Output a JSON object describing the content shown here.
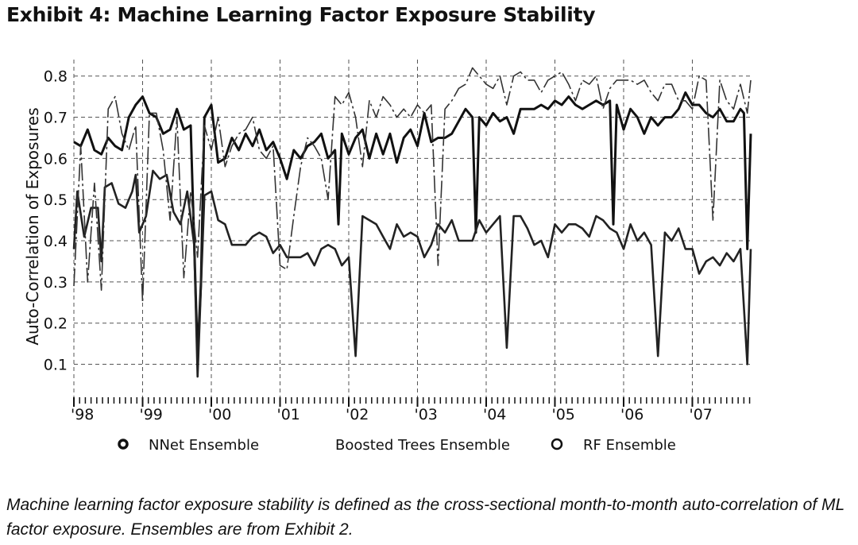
{
  "title": "Exhibit 4: Machine Learning Factor Exposure Stability",
  "caption": "Machine learning factor exposure stability is defined as the cross-sectional month-to-month auto-correlation of ML factor exposure. Ensembles are from Exhibit 2.",
  "chart_data": {
    "type": "line",
    "title": "",
    "xlabel": "",
    "ylabel": "Auto-Correlation of Exposures",
    "xlim": [
      1998,
      2007.85
    ],
    "ylim": [
      0.02,
      0.84
    ],
    "y_ticks": [
      0.1,
      0.2,
      0.3,
      0.4,
      0.5,
      0.6,
      0.7,
      0.8
    ],
    "x_ticks": [
      {
        "value": 1998,
        "label": "'98"
      },
      {
        "value": 1999,
        "label": "'99"
      },
      {
        "value": 2000,
        "label": "'00"
      },
      {
        "value": 2001,
        "label": "'01"
      },
      {
        "value": 2002,
        "label": "'02"
      },
      {
        "value": 2003,
        "label": "'03"
      },
      {
        "value": 2004,
        "label": "'04"
      },
      {
        "value": 2005,
        "label": "'05"
      },
      {
        "value": 2006,
        "label": "'06"
      },
      {
        "value": 2007,
        "label": "'07"
      }
    ],
    "grid": true,
    "legend_position": "bottom",
    "series": [
      {
        "name": "NNet Ensemble",
        "style": "thick-solid",
        "color": "#111111",
        "x": [
          1998.0,
          1998.1,
          1998.2,
          1998.3,
          1998.4,
          1998.5,
          1998.6,
          1998.7,
          1998.8,
          1998.9,
          1999.0,
          1999.1,
          1999.2,
          1999.3,
          1999.4,
          1999.5,
          1999.6,
          1999.7,
          1999.8,
          1999.85,
          1999.9,
          2000.0,
          2000.1,
          2000.2,
          2000.3,
          2000.4,
          2000.5,
          2000.6,
          2000.7,
          2000.8,
          2000.9,
          2001.0,
          2001.1,
          2001.2,
          2001.3,
          2001.4,
          2001.5,
          2001.6,
          2001.7,
          2001.8,
          2001.85,
          2001.9,
          2002.0,
          2002.1,
          2002.2,
          2002.3,
          2002.4,
          2002.5,
          2002.6,
          2002.7,
          2002.8,
          2002.9,
          2003.0,
          2003.1,
          2003.2,
          2003.3,
          2003.4,
          2003.5,
          2003.6,
          2003.7,
          2003.8,
          2003.85,
          2003.9,
          2004.0,
          2004.1,
          2004.2,
          2004.3,
          2004.4,
          2004.5,
          2004.6,
          2004.7,
          2004.8,
          2004.9,
          2005.0,
          2005.1,
          2005.2,
          2005.3,
          2005.4,
          2005.5,
          2005.6,
          2005.7,
          2005.8,
          2005.85,
          2005.9,
          2006.0,
          2006.1,
          2006.2,
          2006.3,
          2006.4,
          2006.5,
          2006.6,
          2006.7,
          2006.8,
          2006.9,
          2007.0,
          2007.1,
          2007.2,
          2007.3,
          2007.4,
          2007.5,
          2007.6,
          2007.7,
          2007.75,
          2007.8,
          2007.85
        ],
        "y": [
          0.64,
          0.63,
          0.67,
          0.62,
          0.61,
          0.65,
          0.63,
          0.62,
          0.7,
          0.73,
          0.75,
          0.71,
          0.7,
          0.66,
          0.67,
          0.72,
          0.67,
          0.68,
          0.12,
          0.3,
          0.7,
          0.73,
          0.59,
          0.6,
          0.65,
          0.62,
          0.66,
          0.63,
          0.67,
          0.62,
          0.64,
          0.6,
          0.55,
          0.62,
          0.6,
          0.63,
          0.64,
          0.66,
          0.6,
          0.62,
          0.44,
          0.66,
          0.61,
          0.65,
          0.67,
          0.6,
          0.66,
          0.61,
          0.66,
          0.59,
          0.65,
          0.67,
          0.63,
          0.71,
          0.64,
          0.65,
          0.65,
          0.66,
          0.69,
          0.72,
          0.7,
          0.42,
          0.7,
          0.68,
          0.71,
          0.69,
          0.7,
          0.66,
          0.72,
          0.72,
          0.72,
          0.73,
          0.72,
          0.74,
          0.73,
          0.75,
          0.73,
          0.72,
          0.73,
          0.74,
          0.73,
          0.74,
          0.44,
          0.73,
          0.67,
          0.72,
          0.7,
          0.66,
          0.7,
          0.68,
          0.7,
          0.7,
          0.72,
          0.76,
          0.73,
          0.73,
          0.71,
          0.7,
          0.72,
          0.69,
          0.69,
          0.72,
          0.71,
          0.38,
          0.66
        ]
      },
      {
        "name": "Boosted Trees Ensemble",
        "style": "medium-solid",
        "color": "#222222",
        "x": [
          1998.0,
          1998.05,
          1998.15,
          1998.25,
          1998.35,
          1998.4,
          1998.45,
          1998.55,
          1998.65,
          1998.75,
          1998.85,
          1998.9,
          1998.95,
          1999.05,
          1999.15,
          1999.25,
          1999.35,
          1999.45,
          1999.55,
          1999.65,
          1999.75,
          1999.8,
          1999.9,
          2000.0,
          2000.1,
          2000.2,
          2000.3,
          2000.4,
          2000.5,
          2000.6,
          2000.7,
          2000.8,
          2000.9,
          2001.0,
          2001.1,
          2001.2,
          2001.3,
          2001.4,
          2001.5,
          2001.6,
          2001.7,
          2001.8,
          2001.9,
          2002.0,
          2002.1,
          2002.2,
          2002.3,
          2002.4,
          2002.5,
          2002.6,
          2002.7,
          2002.8,
          2002.9,
          2003.0,
          2003.1,
          2003.2,
          2003.3,
          2003.4,
          2003.5,
          2003.6,
          2003.7,
          2003.8,
          2003.9,
          2004.0,
          2004.1,
          2004.2,
          2004.3,
          2004.4,
          2004.5,
          2004.6,
          2004.7,
          2004.8,
          2004.9,
          2005.0,
          2005.1,
          2005.2,
          2005.3,
          2005.4,
          2005.5,
          2005.6,
          2005.7,
          2005.8,
          2005.9,
          2006.0,
          2006.1,
          2006.2,
          2006.3,
          2006.4,
          2006.5,
          2006.6,
          2006.7,
          2006.8,
          2006.9,
          2007.0,
          2007.1,
          2007.2,
          2007.3,
          2007.4,
          2007.5,
          2007.6,
          2007.7,
          2007.8,
          2007.85
        ],
        "y": [
          0.38,
          0.52,
          0.41,
          0.48,
          0.48,
          0.35,
          0.53,
          0.54,
          0.49,
          0.48,
          0.52,
          0.56,
          0.42,
          0.46,
          0.57,
          0.55,
          0.56,
          0.47,
          0.44,
          0.52,
          0.39,
          0.07,
          0.51,
          0.52,
          0.45,
          0.44,
          0.39,
          0.39,
          0.39,
          0.41,
          0.42,
          0.41,
          0.37,
          0.39,
          0.36,
          0.36,
          0.36,
          0.37,
          0.34,
          0.38,
          0.39,
          0.38,
          0.34,
          0.36,
          0.12,
          0.46,
          0.45,
          0.44,
          0.41,
          0.38,
          0.44,
          0.41,
          0.42,
          0.41,
          0.36,
          0.39,
          0.44,
          0.42,
          0.45,
          0.4,
          0.4,
          0.4,
          0.45,
          0.42,
          0.44,
          0.46,
          0.14,
          0.46,
          0.46,
          0.43,
          0.39,
          0.4,
          0.36,
          0.44,
          0.42,
          0.44,
          0.44,
          0.43,
          0.41,
          0.46,
          0.45,
          0.43,
          0.42,
          0.38,
          0.44,
          0.4,
          0.42,
          0.39,
          0.12,
          0.42,
          0.4,
          0.43,
          0.38,
          0.38,
          0.32,
          0.35,
          0.36,
          0.34,
          0.37,
          0.35,
          0.38,
          0.1,
          0.38
        ]
      },
      {
        "name": "RF Ensemble",
        "style": "thin-dashed",
        "color": "#333333",
        "x": [
          1998.0,
          1998.1,
          1998.2,
          1998.3,
          1998.4,
          1998.5,
          1998.6,
          1998.7,
          1998.8,
          1998.9,
          1999.0,
          1999.1,
          1999.2,
          1999.3,
          1999.4,
          1999.5,
          1999.6,
          1999.7,
          1999.8,
          1999.9,
          2000.0,
          2000.1,
          2000.2,
          2000.3,
          2000.4,
          2000.5,
          2000.6,
          2000.7,
          2000.8,
          2000.9,
          2001.0,
          2001.1,
          2001.2,
          2001.3,
          2001.4,
          2001.5,
          2001.6,
          2001.7,
          2001.8,
          2001.9,
          2002.0,
          2002.1,
          2002.2,
          2002.3,
          2002.4,
          2002.5,
          2002.6,
          2002.7,
          2002.8,
          2002.9,
          2003.0,
          2003.1,
          2003.2,
          2003.3,
          2003.4,
          2003.5,
          2003.6,
          2003.7,
          2003.8,
          2003.9,
          2004.0,
          2004.1,
          2004.2,
          2004.3,
          2004.4,
          2004.5,
          2004.6,
          2004.7,
          2004.8,
          2004.9,
          2005.0,
          2005.1,
          2005.2,
          2005.3,
          2005.4,
          2005.5,
          2005.6,
          2005.7,
          2005.8,
          2005.9,
          2006.0,
          2006.1,
          2006.2,
          2006.3,
          2006.4,
          2006.5,
          2006.6,
          2006.7,
          2006.8,
          2006.9,
          2007.0,
          2007.1,
          2007.2,
          2007.3,
          2007.4,
          2007.5,
          2007.6,
          2007.7,
          2007.8,
          2007.85
        ],
        "y": [
          0.29,
          0.63,
          0.3,
          0.54,
          0.28,
          0.72,
          0.75,
          0.66,
          0.62,
          0.68,
          0.25,
          0.71,
          0.71,
          0.62,
          0.45,
          0.7,
          0.31,
          0.52,
          0.36,
          0.68,
          0.62,
          0.7,
          0.58,
          0.63,
          0.66,
          0.67,
          0.7,
          0.62,
          0.6,
          0.63,
          0.34,
          0.33,
          0.46,
          0.58,
          0.65,
          0.63,
          0.6,
          0.5,
          0.75,
          0.73,
          0.76,
          0.7,
          0.58,
          0.74,
          0.7,
          0.75,
          0.73,
          0.7,
          0.72,
          0.7,
          0.73,
          0.71,
          0.73,
          0.34,
          0.72,
          0.74,
          0.77,
          0.78,
          0.82,
          0.8,
          0.78,
          0.77,
          0.8,
          0.73,
          0.8,
          0.81,
          0.79,
          0.79,
          0.76,
          0.79,
          0.8,
          0.81,
          0.78,
          0.74,
          0.79,
          0.78,
          0.8,
          0.72,
          0.77,
          0.79,
          0.79,
          0.79,
          0.78,
          0.79,
          0.76,
          0.74,
          0.78,
          0.78,
          0.74,
          0.74,
          0.72,
          0.8,
          0.79,
          0.45,
          0.79,
          0.74,
          0.72,
          0.78,
          0.71,
          0.79
        ]
      }
    ]
  }
}
